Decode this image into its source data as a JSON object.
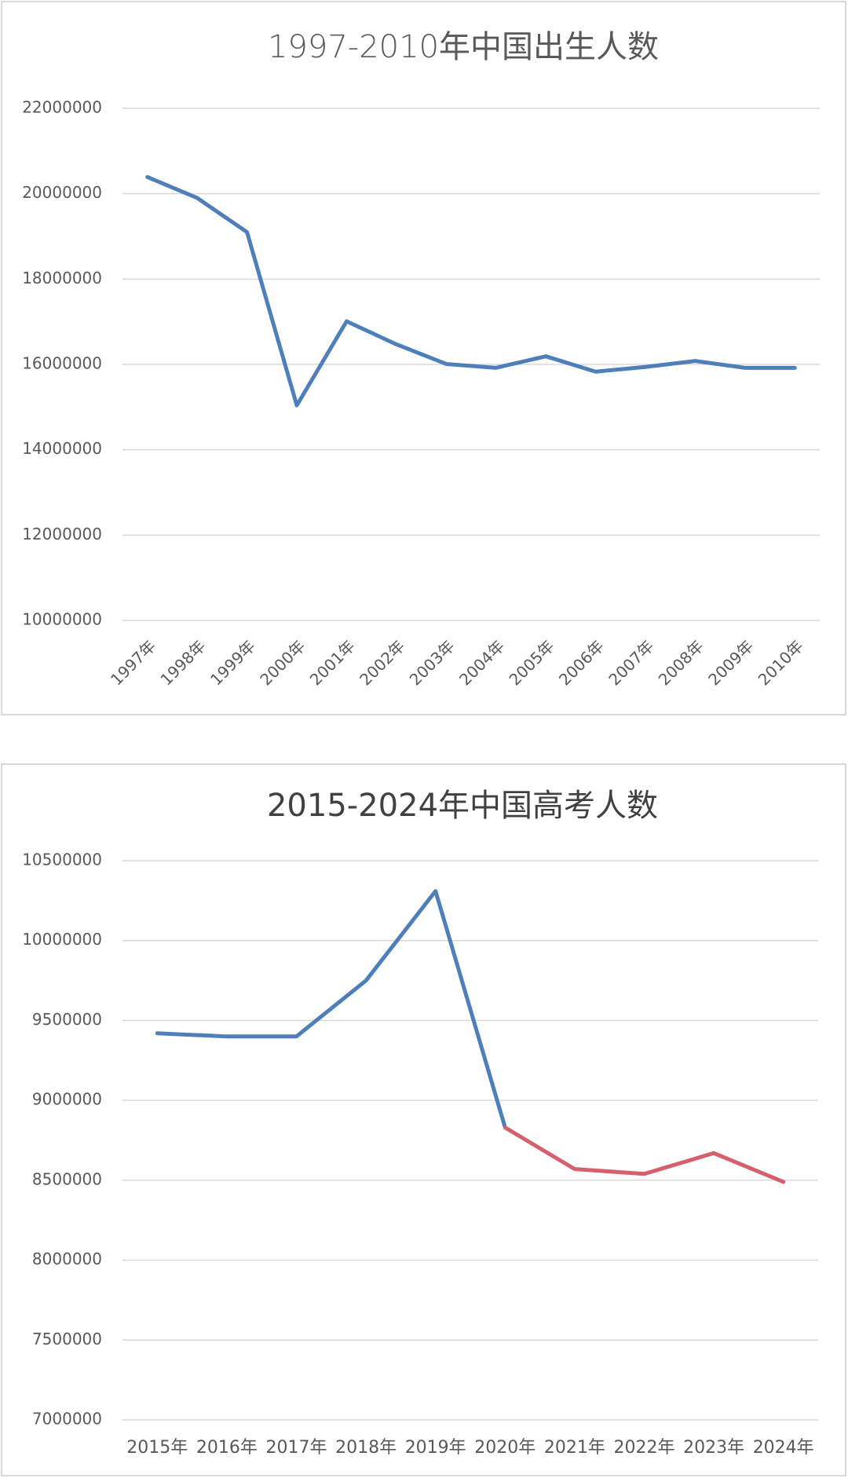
{
  "chart_data": [
    {
      "type": "line",
      "title": "1997-2010年中国出生人数",
      "categories": [
        "1997年",
        "1998年",
        "1999年",
        "2000年",
        "2001年",
        "2002年",
        "2003年",
        "2004年",
        "2005年",
        "2006年",
        "2007年",
        "2008年",
        "2009年",
        "2010年"
      ],
      "values": [
        20390000,
        19900000,
        19100000,
        15040000,
        17010000,
        16470000,
        16010000,
        15920000,
        16190000,
        15830000,
        15940000,
        16080000,
        15920000,
        15920000
      ],
      "color": "#4e7fbb",
      "ylim": [
        10000000,
        22000000
      ],
      "yticks": [
        10000000,
        12000000,
        14000000,
        16000000,
        18000000,
        20000000,
        22000000
      ],
      "grid": true
    },
    {
      "type": "line",
      "title": "2015-2024年中国高考人数",
      "categories": [
        "2015年",
        "2016年",
        "2017年",
        "2018年",
        "2019年",
        "2020年",
        "2021年",
        "2022年",
        "2023年",
        "2024年"
      ],
      "series": [
        {
          "color": "#4e7fbb",
          "values": [
            9420000,
            9400000,
            9400000,
            9750000,
            10310000,
            8830000,
            null,
            null,
            null,
            null
          ]
        },
        {
          "color": "#d65f6e",
          "values": [
            null,
            null,
            null,
            null,
            null,
            8830000,
            8570000,
            8540000,
            8670000,
            8490000
          ]
        }
      ],
      "ylim": [
        7000000,
        10500000
      ],
      "yticks": [
        7000000,
        7500000,
        8000000,
        8500000,
        9000000,
        9500000,
        10000000,
        10500000
      ],
      "grid": true
    }
  ]
}
